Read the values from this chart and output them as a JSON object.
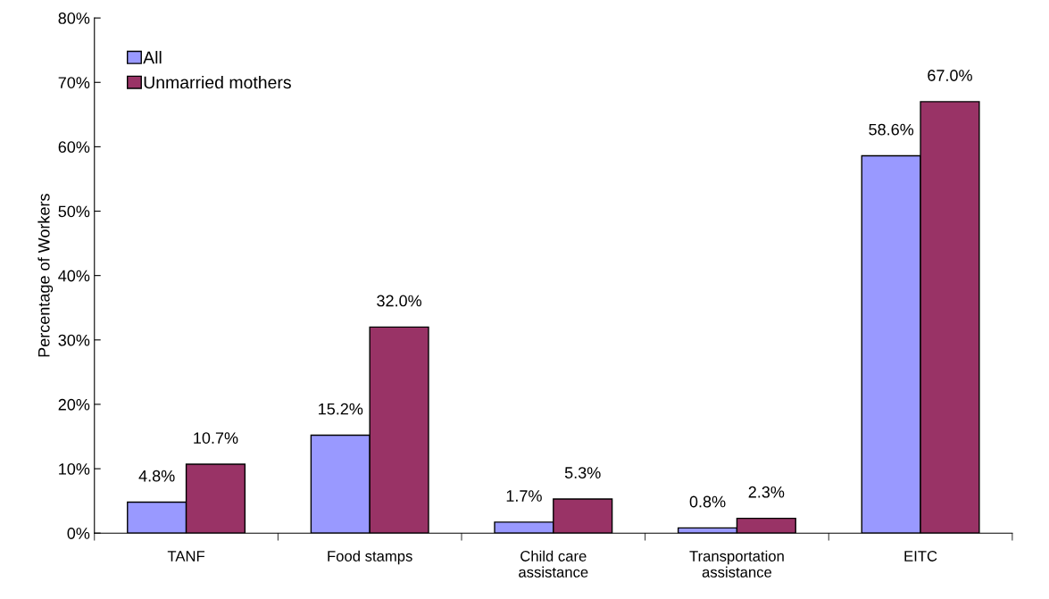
{
  "chart_data": {
    "type": "bar",
    "ylabel": "Percentage of Workers",
    "categories": [
      "TANF",
      "Food stamps",
      "Child care\nassistance",
      "Transportation\nassistance",
      "EITC"
    ],
    "series": [
      {
        "name": "All",
        "color": "#9999ff",
        "values": [
          4.8,
          15.2,
          1.7,
          0.8,
          58.6
        ],
        "value_labels": [
          "4.8%",
          "15.2%",
          "1.7%",
          "0.8%",
          "58.6%"
        ]
      },
      {
        "name": "Unmarried mothers",
        "color": "#993366",
        "values": [
          10.7,
          32.0,
          5.3,
          2.3,
          67.0
        ],
        "value_labels": [
          "10.7%",
          "32.0%",
          "5.3%",
          "2.3%",
          "67.0%"
        ]
      }
    ],
    "ylim": [
      0,
      80
    ],
    "yticks": [
      {
        "value": 0,
        "label": "0%"
      },
      {
        "value": 10,
        "label": "10%"
      },
      {
        "value": 20,
        "label": "20%"
      },
      {
        "value": 30,
        "label": "30%"
      },
      {
        "value": 40,
        "label": "40%"
      },
      {
        "value": 50,
        "label": "50%"
      },
      {
        "value": 60,
        "label": "60%"
      },
      {
        "value": 70,
        "label": "70%"
      },
      {
        "value": 80,
        "label": "80%"
      }
    ],
    "grid": false,
    "legend": "top left"
  }
}
